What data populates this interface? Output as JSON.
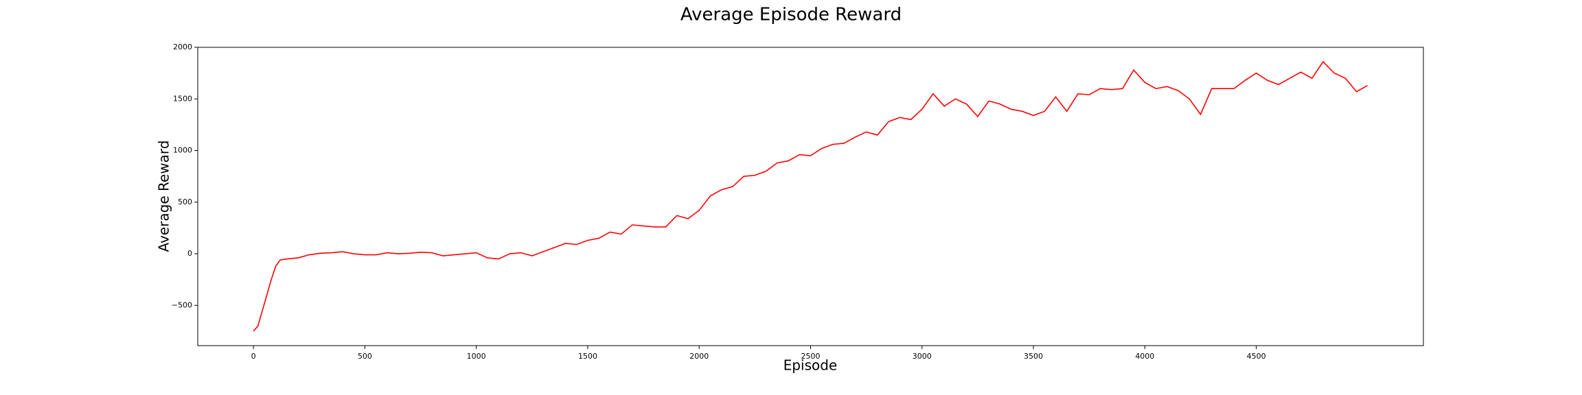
{
  "chart_data": {
    "type": "line",
    "title": "Average Episode Reward",
    "x_label": "Episode",
    "y_label": "Average Reward",
    "color": "#ff0000",
    "x": [
      0,
      20,
      40,
      60,
      80,
      100,
      120,
      150,
      200,
      250,
      300,
      350,
      400,
      450,
      500,
      550,
      600,
      650,
      700,
      750,
      800,
      850,
      900,
      950,
      1000,
      1050,
      1100,
      1150,
      1200,
      1250,
      1300,
      1350,
      1400,
      1450,
      1500,
      1550,
      1600,
      1650,
      1700,
      1750,
      1800,
      1850,
      1900,
      1950,
      2000,
      2050,
      2100,
      2150,
      2200,
      2250,
      2300,
      2350,
      2400,
      2450,
      2500,
      2550,
      2600,
      2650,
      2700,
      2750,
      2800,
      2850,
      2900,
      2950,
      3000,
      3050,
      3100,
      3150,
      3200,
      3250,
      3300,
      3350,
      3400,
      3450,
      3500,
      3550,
      3600,
      3650,
      3700,
      3750,
      3800,
      3850,
      3900,
      3950,
      4000,
      4050,
      4100,
      4150,
      4200,
      4250,
      4300,
      4350,
      4400,
      4450,
      4500,
      4550,
      4600,
      4650,
      4700,
      4750,
      4800,
      4850,
      4900,
      4950,
      4999
    ],
    "values": [
      -750,
      -700,
      -550,
      -400,
      -250,
      -120,
      -60,
      -50,
      -40,
      -10,
      5,
      10,
      20,
      0,
      -10,
      -10,
      10,
      0,
      5,
      15,
      10,
      -20,
      -10,
      0,
      10,
      -40,
      -50,
      0,
      10,
      -20,
      20,
      60,
      100,
      90,
      130,
      150,
      210,
      190,
      280,
      270,
      260,
      260,
      370,
      340,
      420,
      560,
      620,
      650,
      750,
      760,
      800,
      880,
      900,
      960,
      950,
      1020,
      1060,
      1070,
      1130,
      1180,
      1150,
      1280,
      1320,
      1300,
      1400,
      1550,
      1430,
      1500,
      1450,
      1330,
      1480,
      1450,
      1400,
      1380,
      1340,
      1380,
      1520,
      1380,
      1550,
      1540,
      1600,
      1590,
      1600,
      1780,
      1660,
      1600,
      1620,
      1580,
      1500,
      1350,
      1600,
      1600,
      1600,
      1680,
      1750,
      1680,
      1640,
      1700,
      1760,
      1700,
      1860,
      1750,
      1700,
      1570,
      1630
    ],
    "xlim": [
      -250,
      5250
    ],
    "ylim": [
      -890,
      2000
    ],
    "xticks": [
      0,
      500,
      1000,
      1500,
      2000,
      2500,
      3000,
      3500,
      4000,
      4500
    ],
    "yticks": [
      {
        "value": -500,
        "label": "−500"
      },
      0,
      500,
      1000,
      1500,
      2000
    ]
  }
}
